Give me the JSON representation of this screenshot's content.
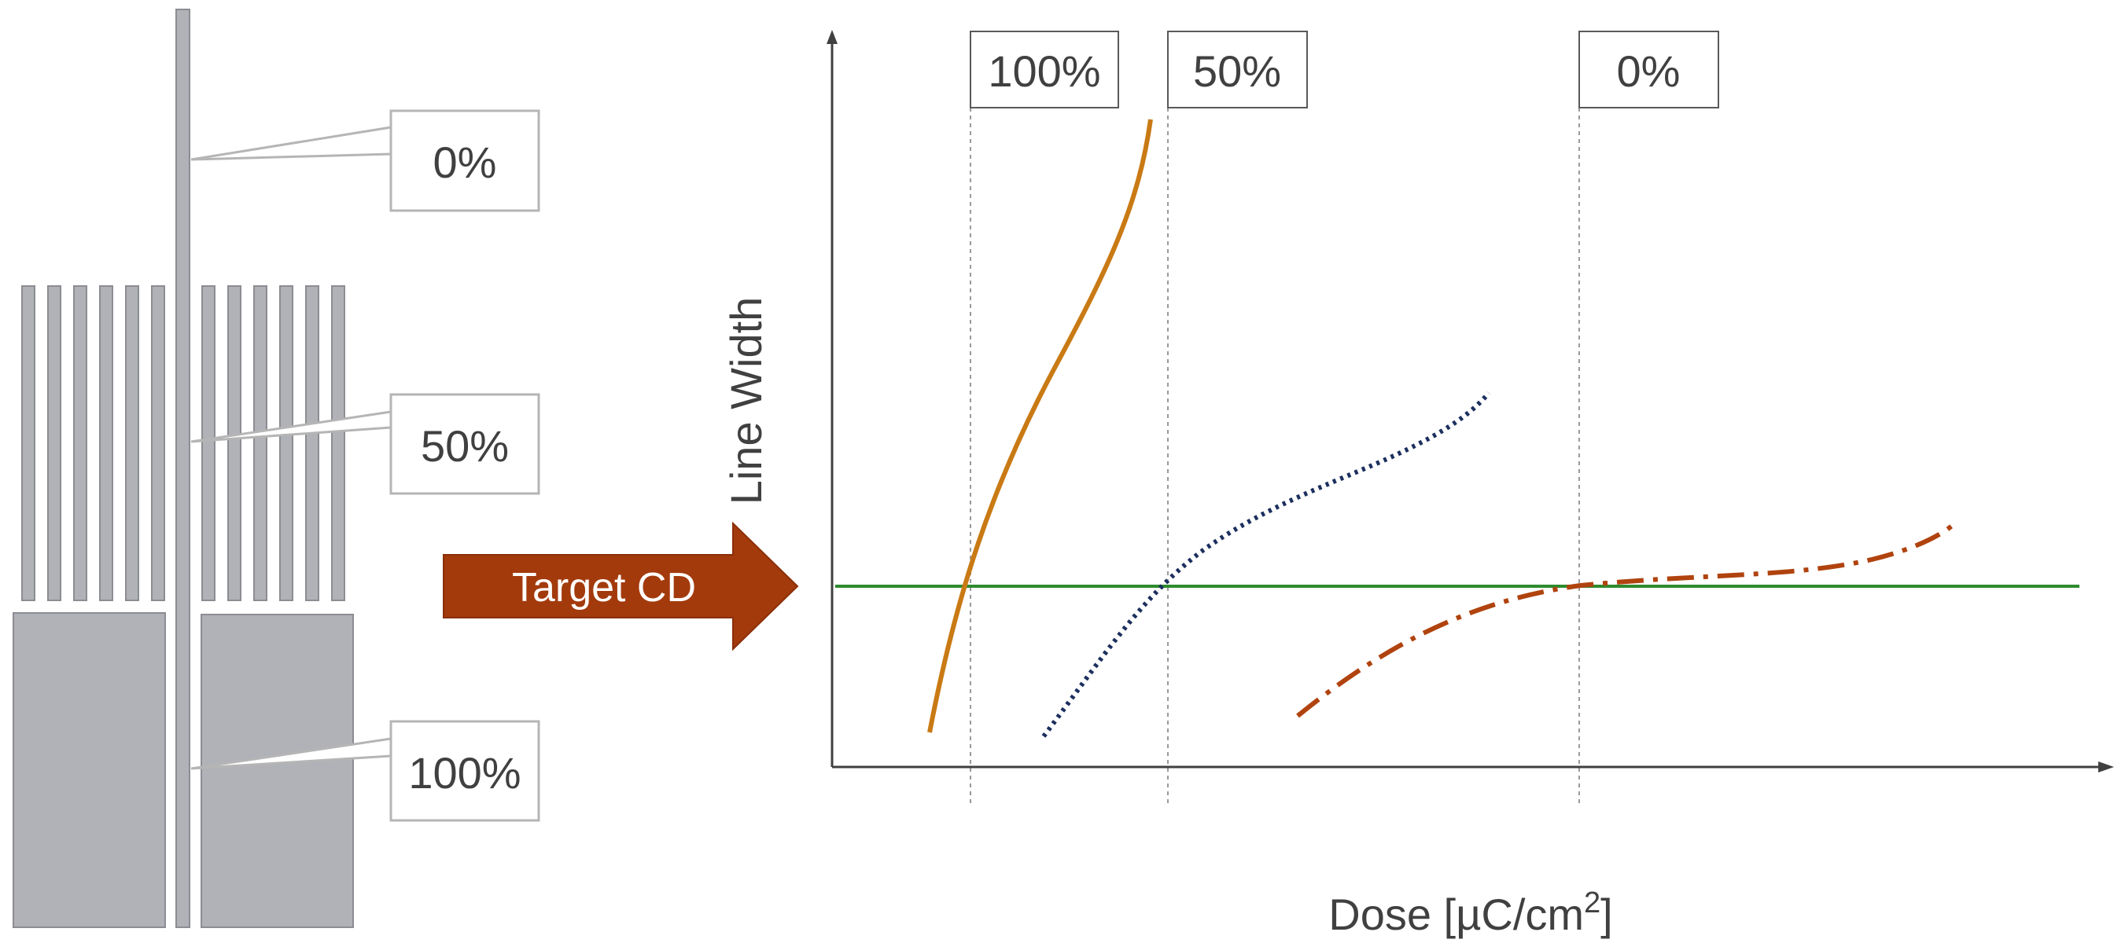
{
  "pattern": {
    "callouts": [
      {
        "label": "0%"
      },
      {
        "label": "50%"
      },
      {
        "label": "100%"
      }
    ],
    "colors": {
      "fill": "#b1b2b7",
      "stroke": "#8c8d92",
      "callout_border": "#b5b5b5"
    }
  },
  "arrow": {
    "label": "Target CD",
    "color": "#a33a0c"
  },
  "plot": {
    "ylabel": "Line Width",
    "xlabel_main": "Dose [µC/cm",
    "xlabel_sup": "2",
    "xlabel_end": "]",
    "density_labels": [
      "100%",
      "50%",
      "0%"
    ],
    "target_cd_color": "#2e8b2e",
    "series": [
      {
        "density": "100%",
        "style": "solid",
        "color": "#c97a14"
      },
      {
        "density": "50%",
        "style": "dotted",
        "color": "#1c2f5e"
      },
      {
        "density": "0%",
        "style": "dash-dot",
        "color": "#b0430e"
      }
    ]
  }
}
